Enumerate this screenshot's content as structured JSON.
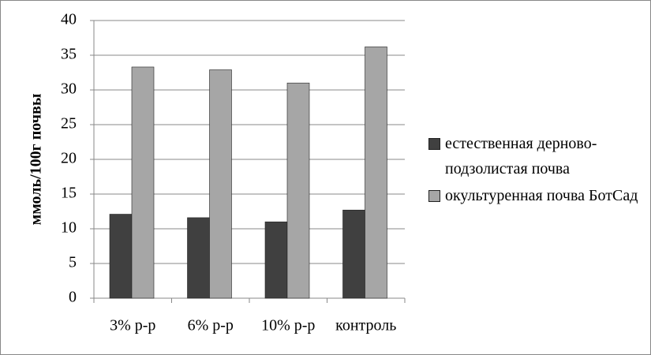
{
  "chart_data": {
    "type": "bar",
    "y_label": "ммоль/100г почвы",
    "categories": [
      "3% р-р",
      "6% р-р",
      "10% р-р",
      "контроль"
    ],
    "series": [
      {
        "name": "естественная дерново-подзолистая почва",
        "color": "#404040",
        "values": [
          12.1,
          11.6,
          11.0,
          12.7
        ]
      },
      {
        "name": "окультуренная почва БотСад",
        "color": "#a6a6a6",
        "values": [
          33.3,
          32.9,
          31.0,
          36.2
        ]
      }
    ],
    "ylim": [
      0,
      40
    ],
    "yticks": [
      0,
      5,
      10,
      15,
      20,
      25,
      30,
      35,
      40
    ],
    "grid": true,
    "legend": "right"
  }
}
